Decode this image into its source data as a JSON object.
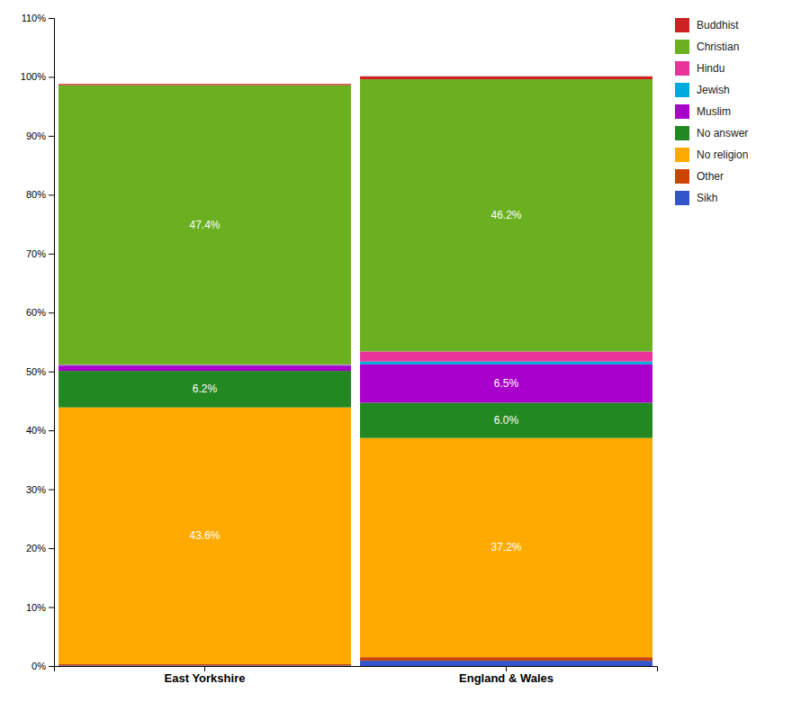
{
  "chart_data": {
    "type": "bar",
    "stacked": true,
    "categories": [
      "East Yorkshire",
      "England & Wales"
    ],
    "series": [
      {
        "name": "Sikh",
        "color": "#3355cc",
        "values": [
          0.1,
          0.9
        ],
        "value_labels": [
          null,
          null
        ]
      },
      {
        "name": "Other",
        "color": "#cc4400",
        "values": [
          0.2,
          0.6
        ],
        "value_labels": [
          null,
          null
        ]
      },
      {
        "name": "No religion",
        "color": "#ffaa00",
        "values": [
          43.6,
          37.2
        ],
        "value_labels": [
          "43.6%",
          "37.2%"
        ]
      },
      {
        "name": "No answer",
        "color": "#228822",
        "values": [
          6.2,
          6.0
        ],
        "value_labels": [
          "6.2%",
          "6.0%"
        ]
      },
      {
        "name": "Muslim",
        "color": "#aa00cc",
        "values": [
          0.9,
          6.5
        ],
        "value_labels": [
          null,
          "6.5%"
        ]
      },
      {
        "name": "Jewish",
        "color": "#00aadd",
        "values": [
          0.1,
          0.5
        ],
        "value_labels": [
          null,
          null
        ]
      },
      {
        "name": "Hindu",
        "color": "#e8339a",
        "values": [
          0.1,
          1.7
        ],
        "value_labels": [
          null,
          null
        ]
      },
      {
        "name": "Christian",
        "color": "#6ab020",
        "values": [
          47.4,
          46.2
        ],
        "value_labels": [
          "47.4%",
          "46.2%"
        ]
      },
      {
        "name": "Buddhist",
        "color": "#cc2222",
        "values": [
          0.2,
          0.5
        ],
        "value_labels": [
          null,
          null
        ]
      }
    ],
    "data_labels": true,
    "ylim": [
      0,
      110
    ],
    "yticks": [
      {
        "value": 0,
        "label": "0%"
      },
      {
        "value": 10,
        "label": "10%"
      },
      {
        "value": 20,
        "label": "20%"
      },
      {
        "value": 30,
        "label": "30%"
      },
      {
        "value": 40,
        "label": "40%"
      },
      {
        "value": 50,
        "label": "50%"
      },
      {
        "value": 60,
        "label": "60%"
      },
      {
        "value": 70,
        "label": "70%"
      },
      {
        "value": 80,
        "label": "80%"
      },
      {
        "value": 90,
        "label": "90%"
      },
      {
        "value": 100,
        "label": "100%"
      },
      {
        "value": 110,
        "label": "110%"
      }
    ],
    "grid": false,
    "legend": "upper right"
  }
}
